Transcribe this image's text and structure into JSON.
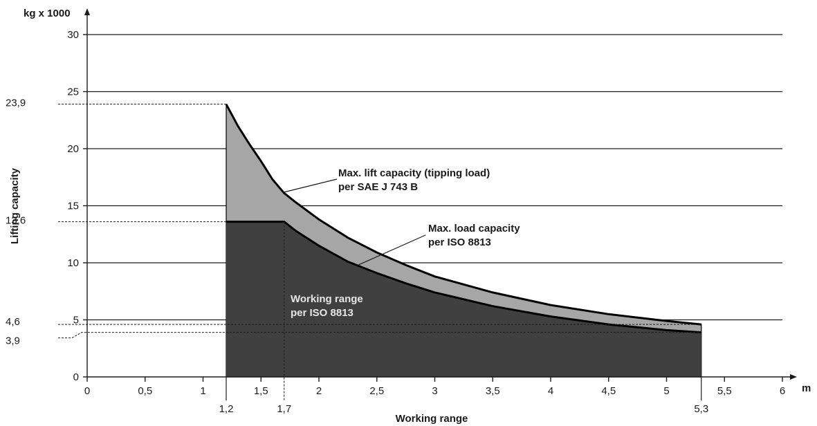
{
  "chart_data": {
    "type": "area",
    "ylabel": "Lifting capacity",
    "y_unit": "kg x 1000",
    "xlabel": "Working range",
    "x_unit": "m",
    "xlim": [
      0,
      6
    ],
    "ylim": [
      0,
      30
    ],
    "grid": true,
    "x_ticks": [
      "0",
      "0,5",
      "1",
      "1,5",
      "2",
      "2,5",
      "3",
      "3,5",
      "4",
      "4,5",
      "5",
      "5,5",
      "6"
    ],
    "y_ticks": [
      "0",
      "5",
      "10",
      "15",
      "20",
      "25",
      "30"
    ],
    "marked_x": [
      "1,2",
      "1,7",
      "5,3"
    ],
    "marked_y": [
      "23,9",
      "13,6",
      "4,6",
      "3,9"
    ],
    "series": [
      {
        "name": "Max. lift capacity (tipping load) per SAE J 743 B",
        "color": "#a6a6a6",
        "x": [
          1.2,
          1.3,
          1.4,
          1.5,
          1.6,
          1.7,
          1.8,
          2.0,
          2.25,
          2.5,
          2.75,
          3.0,
          3.5,
          4.0,
          4.5,
          5.0,
          5.3
        ],
        "y": [
          23.9,
          22.0,
          20.4,
          18.9,
          17.3,
          16.1,
          15.3,
          13.8,
          12.2,
          10.9,
          9.8,
          8.8,
          7.4,
          6.3,
          5.5,
          4.9,
          4.6
        ]
      },
      {
        "name": "Max. load capacity per ISO 8813",
        "color": "#404040",
        "x": [
          1.2,
          1.7,
          1.8,
          2.0,
          2.25,
          2.5,
          2.75,
          3.0,
          3.5,
          4.0,
          4.5,
          5.0,
          5.3
        ],
        "y": [
          13.6,
          13.6,
          12.8,
          11.5,
          10.1,
          9.1,
          8.2,
          7.4,
          6.2,
          5.3,
          4.6,
          4.1,
          3.9
        ]
      }
    ],
    "annotations": {
      "lift": [
        "Max. lift capacity (tipping load)",
        "per SAE J 743 B"
      ],
      "load": [
        "Max. load capacity",
        "per ISO 8813"
      ],
      "working": [
        "Working range",
        "per ISO 8813"
      ]
    }
  }
}
